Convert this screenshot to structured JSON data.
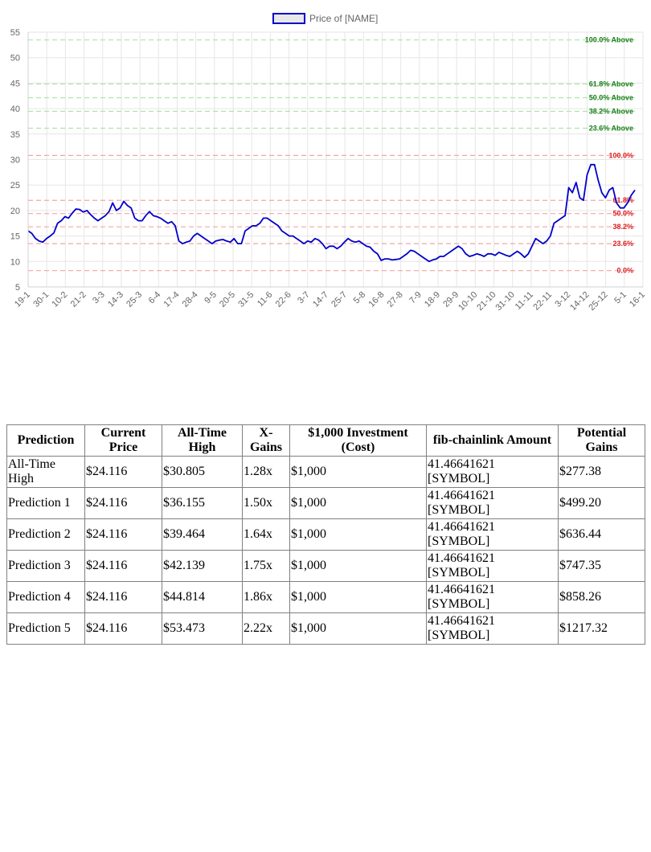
{
  "chart_data": {
    "type": "line",
    "legend": {
      "label": "Price of [NAME]",
      "placement": "top"
    },
    "ylim": [
      5,
      55
    ],
    "y_ticks": [
      5,
      10,
      15,
      20,
      25,
      30,
      35,
      40,
      45,
      50,
      55
    ],
    "x_tick_labels": [
      "19-1",
      "30-1",
      "10-2",
      "21-2",
      "3-3",
      "14-3",
      "25-3",
      "6-4",
      "17-4",
      "28-4",
      "9-5",
      "20-5",
      "31-5",
      "11-6",
      "22-6",
      "3-7",
      "14-7",
      "25-7",
      "5-8",
      "16-8",
      "27-8",
      "7-9",
      "18-9",
      "29-9",
      "10-10",
      "21-10",
      "31-10",
      "11-11",
      "22-11",
      "3-12",
      "14-12",
      "25-12",
      "5-1",
      "16-1"
    ],
    "grid": true,
    "series": [
      {
        "name": "Price of [NAME]",
        "color": "#0000cc",
        "values": [
          16.0,
          15.5,
          14.5,
          14.0,
          13.8,
          14.5,
          15.0,
          15.6,
          17.5,
          18.0,
          18.8,
          18.5,
          19.5,
          20.3,
          20.2,
          19.7,
          20.0,
          19.2,
          18.5,
          18.0,
          18.5,
          19.0,
          19.8,
          21.5,
          20.0,
          20.5,
          21.8,
          21.0,
          20.5,
          18.5,
          18.0,
          18.0,
          19.0,
          19.8,
          19.0,
          18.8,
          18.5,
          18.0,
          17.5,
          17.8,
          17.0,
          14.0,
          13.5,
          13.8,
          14.0,
          15.0,
          15.5,
          15.0,
          14.5,
          14.0,
          13.5,
          14.0,
          14.2,
          14.3,
          14.0,
          13.8,
          14.5,
          13.5,
          13.5,
          16.0,
          16.5,
          17.0,
          17.0,
          17.5,
          18.5,
          18.5,
          18.0,
          17.5,
          17.0,
          16.0,
          15.5,
          15.0,
          15.0,
          14.5,
          14.0,
          13.5,
          14.0,
          13.8,
          14.5,
          14.2,
          13.5,
          12.5,
          13.0,
          13.0,
          12.5,
          13.0,
          13.8,
          14.5,
          14.0,
          13.8,
          14.0,
          13.5,
          13.0,
          12.8,
          12.0,
          11.5,
          10.2,
          10.5,
          10.5,
          10.3,
          10.4,
          10.5,
          11.0,
          11.5,
          12.2,
          12.0,
          11.5,
          11.0,
          10.5,
          10.0,
          10.3,
          10.5,
          11.0,
          11.0,
          11.5,
          12.0,
          12.5,
          13.0,
          12.5,
          11.5,
          11.0,
          11.2,
          11.5,
          11.3,
          11.0,
          11.5,
          11.5,
          11.2,
          11.8,
          11.5,
          11.2,
          11.0,
          11.5,
          12.0,
          11.5,
          10.8,
          11.5,
          13.0,
          14.5,
          14.0,
          13.5,
          14.0,
          15.0,
          17.5,
          18.0,
          18.5,
          19.0,
          24.5,
          23.5,
          25.5,
          22.5,
          22.0,
          27.0,
          29.0,
          29.0,
          26.0,
          23.5,
          22.5,
          24.0,
          24.5,
          21.5,
          20.5,
          20.5,
          21.5,
          23.0,
          24.0
        ]
      }
    ],
    "fib_levels": [
      {
        "label": "100.0% Above",
        "value": 53.473,
        "color": "#1a7f1a",
        "line_color": "#a8e6a8"
      },
      {
        "label": "61.8% Above",
        "value": 44.814,
        "color": "#1a7f1a",
        "line_color": "#a8e6a8"
      },
      {
        "label": "50.0% Above",
        "value": 42.139,
        "color": "#1a7f1a",
        "line_color": "#a8e6a8"
      },
      {
        "label": "38.2% Above",
        "value": 39.464,
        "color": "#1a7f1a",
        "line_color": "#a8e6a8"
      },
      {
        "label": "23.6% Above",
        "value": 36.155,
        "color": "#1a7f1a",
        "line_color": "#a8e6a8"
      },
      {
        "label": "100.0%",
        "value": 30.805,
        "color": "#dd2222",
        "line_color": "#f4a6a6"
      },
      {
        "label": "61.8%",
        "value": 22.0,
        "color": "#dd2222",
        "line_color": "#f4a6a6"
      },
      {
        "label": "50.0%",
        "value": 19.4,
        "color": "#dd2222",
        "line_color": "#f4a6a6"
      },
      {
        "label": "38.2%",
        "value": 16.8,
        "color": "#dd2222",
        "line_color": "#f4a6a6"
      },
      {
        "label": "23.6%",
        "value": 13.5,
        "color": "#dd2222",
        "line_color": "#f4a6a6"
      },
      {
        "label": "0.0%",
        "value": 8.2,
        "color": "#dd2222",
        "line_color": "#f4a6a6"
      }
    ]
  },
  "table": {
    "headers": [
      "Prediction",
      "Current Price",
      "All-Time High",
      "X-Gains",
      "$1,000 Investment (Cost)",
      "fib-chainlink Amount",
      "Potential Gains"
    ],
    "rows": [
      [
        "All-Time High",
        "$24.116",
        "$30.805",
        "1.28x",
        "$1,000",
        "41.46641621 [SYMBOL]",
        "$277.38"
      ],
      [
        "Prediction 1",
        "$24.116",
        "$36.155",
        "1.50x",
        "$1,000",
        "41.46641621 [SYMBOL]",
        "$499.20"
      ],
      [
        "Prediction 2",
        "$24.116",
        "$39.464",
        "1.64x",
        "$1,000",
        "41.46641621 [SYMBOL]",
        "$636.44"
      ],
      [
        "Prediction 3",
        "$24.116",
        "$42.139",
        "1.75x",
        "$1,000",
        "41.46641621 [SYMBOL]",
        "$747.35"
      ],
      [
        "Prediction 4",
        "$24.116",
        "$44.814",
        "1.86x",
        "$1,000",
        "41.46641621 [SYMBOL]",
        "$858.26"
      ],
      [
        "Prediction 5",
        "$24.116",
        "$53.473",
        "2.22x",
        "$1,000",
        "41.46641621 [SYMBOL]",
        "$1217.32"
      ]
    ]
  }
}
